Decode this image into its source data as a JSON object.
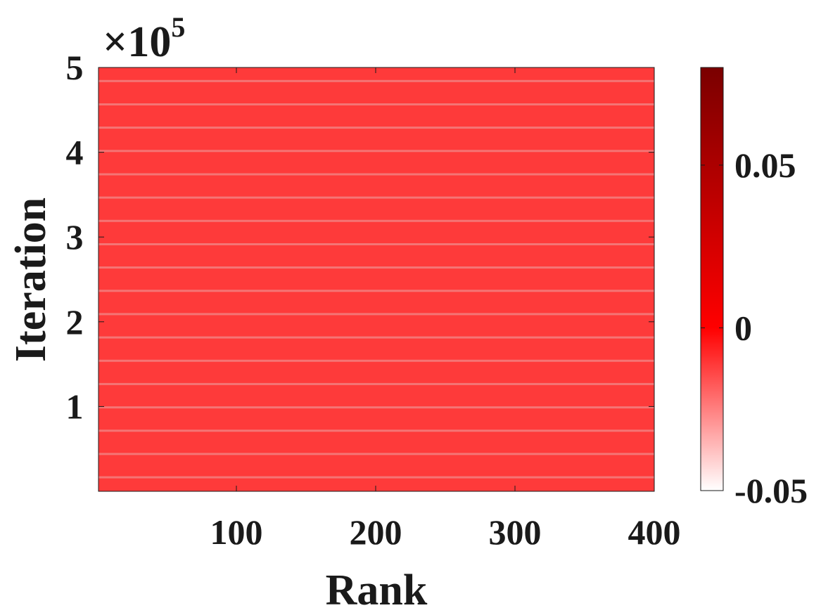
{
  "chart_data": {
    "type": "heatmap",
    "title": "",
    "xlabel": "Rank",
    "ylabel": "Iteration",
    "xlim": [
      1,
      400
    ],
    "ylim": [
      0,
      500000
    ],
    "x_ticks": [
      100,
      200,
      300,
      400
    ],
    "x_tick_labels": [
      "100",
      "200",
      "300",
      "400"
    ],
    "y_ticks": [
      1,
      2,
      3,
      4,
      5
    ],
    "y_tick_labels": [
      "1",
      "2",
      "3",
      "4",
      "5"
    ],
    "y_exponent_label": "×10",
    "y_exponent_power": "5",
    "dominant_value": 0.018,
    "stripe_period": 27500,
    "colorbar": {
      "min": -0.05,
      "max": 0.08,
      "ticks": [
        -0.05,
        0,
        0.05
      ],
      "tick_labels": [
        "-0.05",
        "0",
        "0.05"
      ],
      "colors": [
        "#ffffff",
        "#ff0000",
        "#7a0000"
      ]
    },
    "colors": {
      "field": "#fe3a3a",
      "stripe": "#f08a8a",
      "axis": "#1a1a1a"
    }
  }
}
